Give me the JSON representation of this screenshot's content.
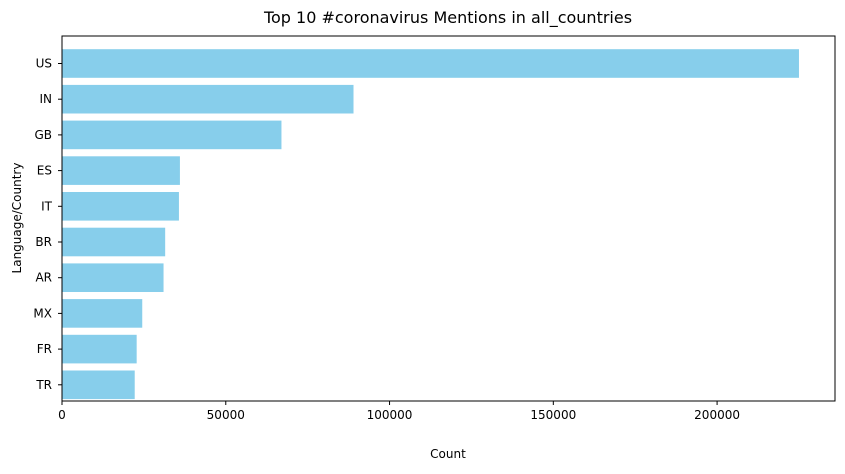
{
  "chart_data": {
    "type": "bar",
    "orientation": "horizontal",
    "title": "Top 10 #coronavirus Mentions in all_countries",
    "xlabel": "Count",
    "ylabel": "Language/Country",
    "categories": [
      "US",
      "IN",
      "GB",
      "ES",
      "IT",
      "BR",
      "AR",
      "MX",
      "FR",
      "TR"
    ],
    "values": [
      225000,
      89000,
      67000,
      36000,
      35700,
      31500,
      31000,
      24500,
      22800,
      22200
    ],
    "xlim": [
      0,
      236000
    ],
    "xticks": [
      0,
      50000,
      100000,
      150000,
      200000
    ],
    "xtick_labels": [
      "0",
      "50000",
      "100000",
      "150000",
      "200000"
    ],
    "bar_color": "#87CEEB",
    "grid": false
  }
}
